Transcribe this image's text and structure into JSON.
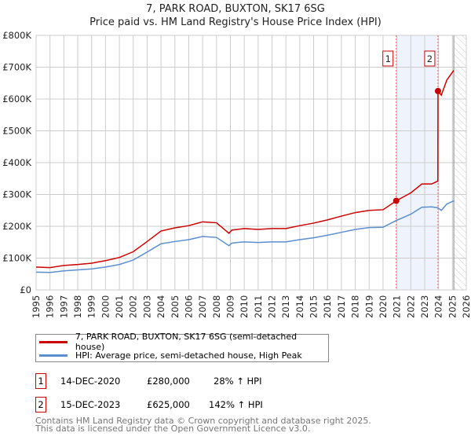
{
  "chart_data": {
    "type": "line",
    "title": "7, PARK ROAD, BUXTON, SK17 6SG",
    "subtitle": "Price paid vs. HM Land Registry's House Price Index (HPI)",
    "xlim": [
      1995,
      2026
    ],
    "ylim": [
      0,
      800000
    ],
    "x_ticks": [
      "1995",
      "1996",
      "1997",
      "1998",
      "1999",
      "2000",
      "2001",
      "2002",
      "2003",
      "2004",
      "2005",
      "2006",
      "2007",
      "2008",
      "2009",
      "2010",
      "2011",
      "2012",
      "2013",
      "2014",
      "2015",
      "2016",
      "2017",
      "2018",
      "2019",
      "2020",
      "2021",
      "2022",
      "2023",
      "2024",
      "2025",
      "2026"
    ],
    "y_ticks": [
      {
        "v": 0,
        "label": "£0"
      },
      {
        "v": 100000,
        "label": "£100K"
      },
      {
        "v": 200000,
        "label": "£200K"
      },
      {
        "v": 300000,
        "label": "£300K"
      },
      {
        "v": 400000,
        "label": "£400K"
      },
      {
        "v": 500000,
        "label": "£500K"
      },
      {
        "v": 600000,
        "label": "£600K"
      },
      {
        "v": 700000,
        "label": "£700K"
      },
      {
        "v": 800000,
        "label": "£800K"
      }
    ],
    "grid": true,
    "shaded_range": [
      2020.95,
      2023.96
    ],
    "forecast_hatch_from": 2025.1,
    "series": [
      {
        "name": "7, PARK ROAD, BUXTON, SK17 6SG (semi-detached house)",
        "color": "#cc0000",
        "x": [
          1995,
          1996,
          1997,
          1998,
          1999,
          2000,
          2001,
          2002,
          2003,
          2004,
          2005,
          2006,
          2007,
          2008,
          2008.9,
          2009.1,
          2009.5,
          2010,
          2011,
          2012,
          2013,
          2014,
          2015,
          2016,
          2017,
          2018,
          2019,
          2020,
          2020.95,
          2022,
          2022.8,
          2023.5,
          2023.95,
          2023.96,
          2024.2,
          2024.6,
          2025.1
        ],
        "y": [
          72000,
          70000,
          77000,
          80000,
          84000,
          92000,
          102000,
          120000,
          152000,
          185000,
          195000,
          202000,
          214000,
          211000,
          178000,
          188000,
          190000,
          193000,
          190000,
          193000,
          193000,
          202000,
          210000,
          220000,
          232000,
          243000,
          250000,
          252000,
          280000,
          305000,
          333000,
          333000,
          342000,
          625000,
          612000,
          660000,
          690000
        ]
      },
      {
        "name": "HPI: Average price, semi-detached house, High Peak",
        "color": "#5b8fd0",
        "x": [
          1995,
          1996,
          1997,
          1998,
          1999,
          2000,
          2001,
          2002,
          2003,
          2004,
          2005,
          2006,
          2007,
          2008,
          2008.9,
          2009.1,
          2009.5,
          2010,
          2011,
          2012,
          2013,
          2014,
          2015,
          2016,
          2017,
          2018,
          2019,
          2020,
          2020.95,
          2022,
          2022.8,
          2023.5,
          2023.95,
          2024.2,
          2024.6,
          2025.1
        ],
        "y": [
          56000,
          55000,
          60000,
          63000,
          66000,
          72000,
          80000,
          94000,
          119000,
          145000,
          152000,
          158000,
          168000,
          165000,
          139000,
          147000,
          149000,
          151000,
          149000,
          151000,
          151000,
          158000,
          164000,
          172000,
          181000,
          190000,
          196000,
          197000,
          218000,
          238000,
          260000,
          261000,
          258000,
          250000,
          270000,
          280000
        ]
      }
    ],
    "markers": [
      {
        "label": "1",
        "x": 2020.95,
        "y": 280000
      },
      {
        "label": "2",
        "x": 2023.96,
        "y": 625000
      }
    ]
  },
  "legend": [
    {
      "label": "7, PARK ROAD, BUXTON, SK17 6SG (semi-detached house)",
      "color": "#cc0000"
    },
    {
      "label": "HPI: Average price, semi-detached house, High Peak",
      "color": "#5b8fd0"
    }
  ],
  "transactions": [
    {
      "num": "1",
      "date": "14-DEC-2020",
      "price": "£280,000",
      "hpi": "28% ↑ HPI"
    },
    {
      "num": "2",
      "date": "15-DEC-2023",
      "price": "£625,000",
      "hpi": "142% ↑ HPI"
    }
  ],
  "footer": {
    "line1": "Contains HM Land Registry data © Crown copyright and database right 2025.",
    "line2": "This data is licensed under the Open Government Licence v3.0."
  }
}
